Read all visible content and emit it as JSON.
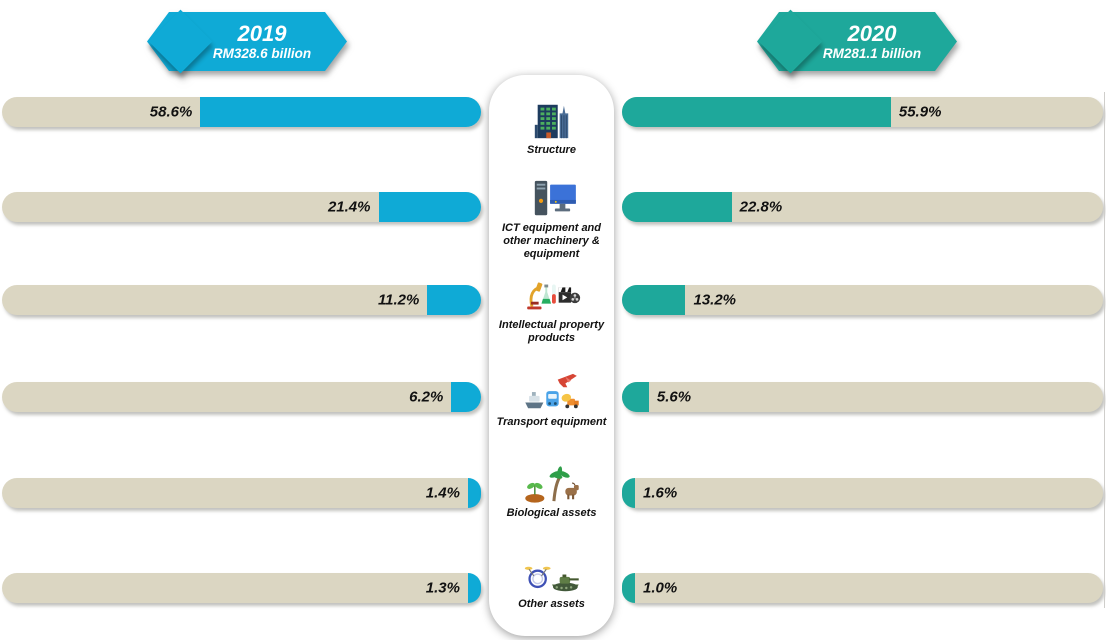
{
  "header": {
    "year_2019": {
      "year": "2019",
      "amount": "RM328.6 billion",
      "color": "#0FAAD6"
    },
    "year_2020": {
      "year": "2020",
      "amount": "RM281.1 billion",
      "color": "#1EA89B"
    }
  },
  "chart_data": {
    "type": "bar",
    "orientation": "horizontal-mirrored",
    "categories": [
      "Structure",
      "ICT equipment and other machinery & equipment",
      "Intellectual property products",
      "Transport equipment",
      "Biological assets",
      "Other assets"
    ],
    "series": [
      {
        "name": "2019",
        "total": "RM328.6 billion",
        "color": "#0FAAD6",
        "values": [
          58.6,
          21.4,
          11.2,
          6.2,
          1.4,
          1.3
        ]
      },
      {
        "name": "2020",
        "total": "RM281.1 billion",
        "color": "#1EA89B",
        "values": [
          55.9,
          22.8,
          13.2,
          5.6,
          1.6,
          1.0
        ]
      }
    ],
    "value_labels": {
      "left": [
        "58.6%",
        "21.4%",
        "11.2%",
        "6.2%",
        "1.4%",
        "1.3%"
      ],
      "right": [
        "55.9%",
        "22.8%",
        "13.2%",
        "5.6%",
        "1.6%",
        "1.0%"
      ]
    },
    "track_color": "#DBD6C2",
    "unit": "percent",
    "legend_position": "top",
    "grid": false
  },
  "center_panel": {
    "items": [
      {
        "label": "Structure",
        "icon": "buildings-icon"
      },
      {
        "label": "ICT equipment and other machinery & equipment",
        "icon": "desktop-computer-icon"
      },
      {
        "label": "Intellectual property products",
        "icon": "research-and-media-icon"
      },
      {
        "label": "Transport equipment",
        "icon": "vehicles-icon"
      },
      {
        "label": "Biological assets",
        "icon": "plants-and-livestock-icon"
      },
      {
        "label": "Other assets",
        "icon": "drums-and-tank-icon"
      }
    ]
  }
}
